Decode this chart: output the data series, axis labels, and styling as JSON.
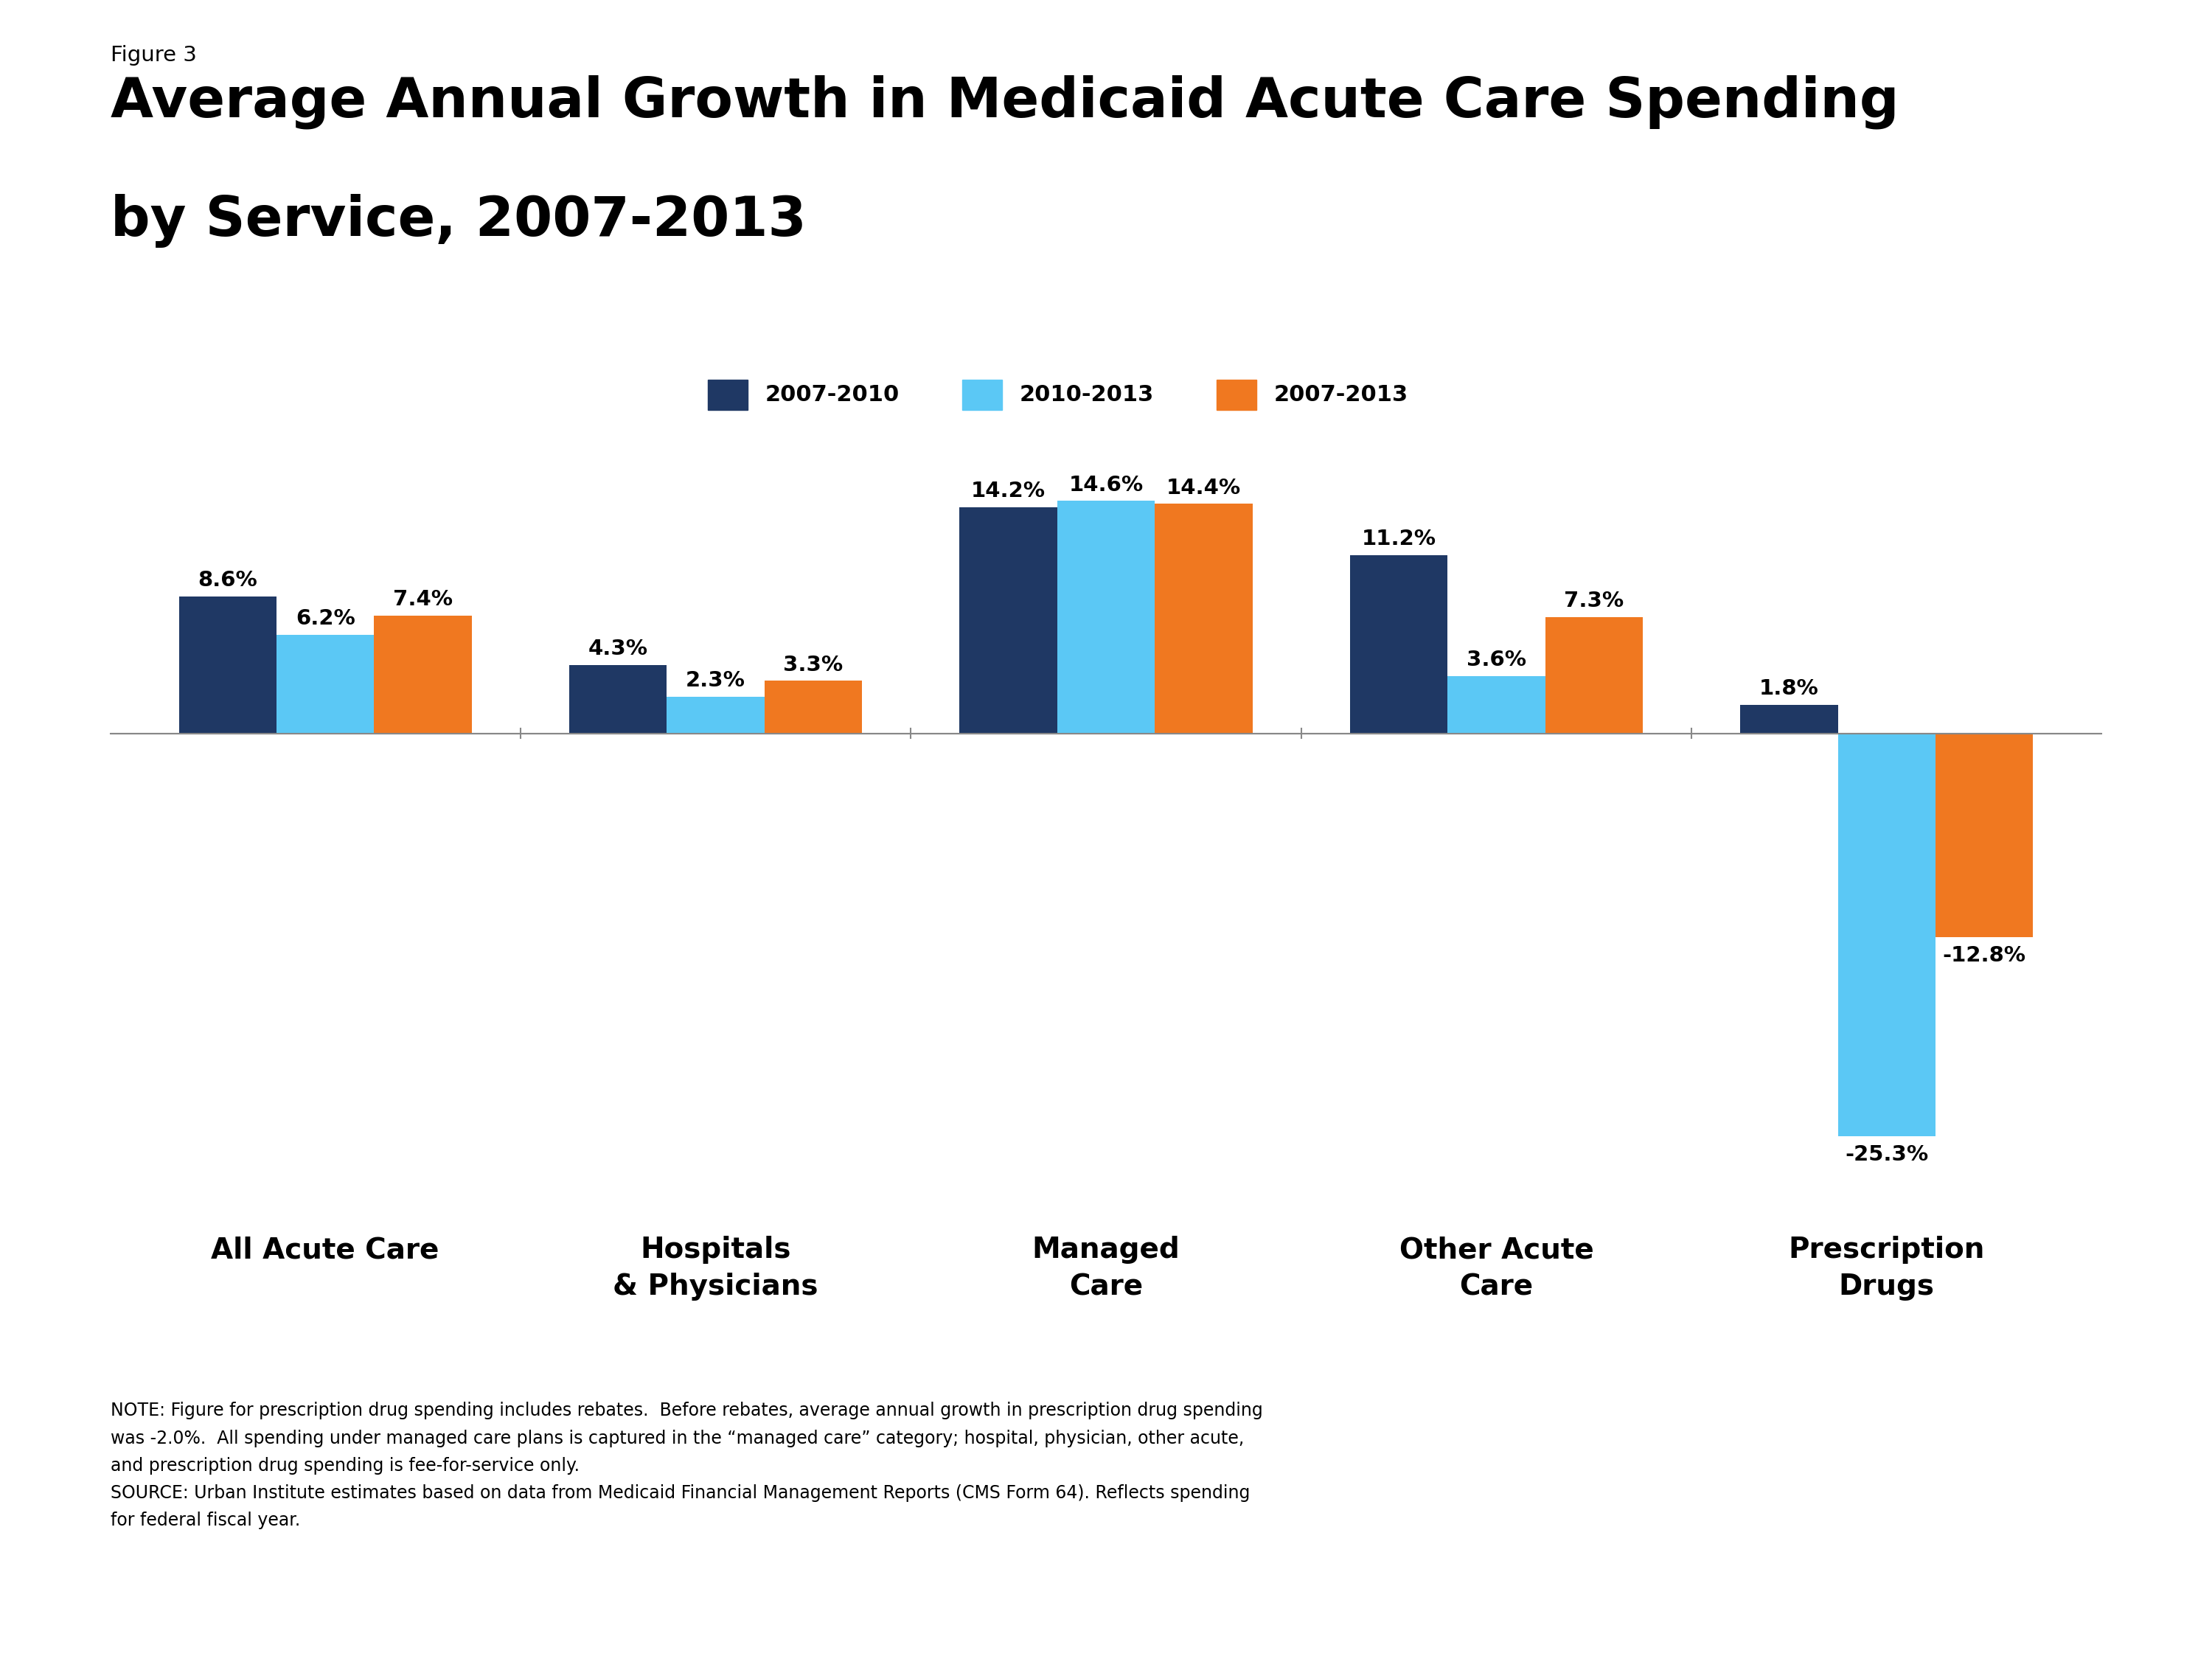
{
  "figure_label": "Figure 3",
  "title_line1": "Average Annual Growth in Medicaid Acute Care Spending",
  "title_line2": "by Service, 2007-2013",
  "categories": [
    "All Acute Care",
    "Hospitals\n& Physicians",
    "Managed\nCare",
    "Other Acute\nCare",
    "Prescription\nDrugs"
  ],
  "series": {
    "2007-2010": [
      8.6,
      4.3,
      14.2,
      11.2,
      1.8
    ],
    "2010-2013": [
      6.2,
      2.3,
      14.6,
      3.6,
      -25.3
    ],
    "2007-2013": [
      7.4,
      3.3,
      14.4,
      7.3,
      -12.8
    ]
  },
  "colors": {
    "2007-2010": "#1F3864",
    "2010-2013": "#5BC8F5",
    "2007-2013": "#F07820"
  },
  "legend_labels": [
    "2007-2010",
    "2010-2013",
    "2007-2013"
  ],
  "ylim": [
    -30,
    20
  ],
  "note_text": "NOTE: Figure for prescription drug spending includes rebates.  Before rebates, average annual growth in prescription drug spending\nwas -2.0%.  All spending under managed care plans is captured in the “managed care” category; hospital, physician, other acute,\nand prescription drug spending is fee-for-service only.\nSOURCE: Urban Institute estimates based on data from Medicaid Financial Management Reports (CMS Form 64). Reflects spending\nfor federal fiscal year.",
  "kaiser_logo_color": "#1F3864",
  "bar_label_fontsize": 21,
  "title_fontsize": 54,
  "figure_label_fontsize": 21,
  "legend_fontsize": 22,
  "axis_label_fontsize": 28,
  "note_fontsize": 17
}
